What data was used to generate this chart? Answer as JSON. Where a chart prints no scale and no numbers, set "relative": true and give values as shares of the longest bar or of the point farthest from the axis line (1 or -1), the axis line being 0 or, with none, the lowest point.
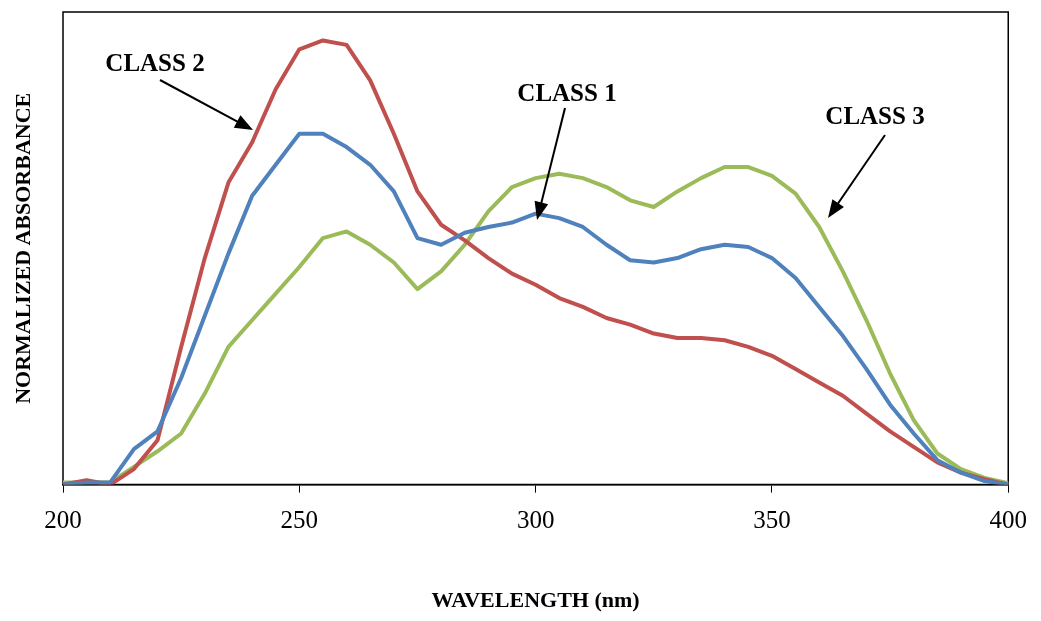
{
  "chart_data": {
    "type": "line",
    "relative": true,
    "xlabel": "WAVELENGTH (nm)",
    "ylabel": "NORMALIZED ABSORBANCE",
    "xlim": [
      200,
      400
    ],
    "xticks": [
      200,
      250,
      300,
      350,
      400
    ],
    "grid": false,
    "legend": false,
    "marker": "none",
    "line_style": "solid",
    "x": [
      200,
      205,
      210,
      215,
      220,
      225,
      230,
      235,
      240,
      245,
      250,
      255,
      260,
      265,
      270,
      275,
      280,
      285,
      290,
      295,
      300,
      305,
      310,
      315,
      320,
      325,
      330,
      335,
      340,
      345,
      350,
      355,
      360,
      365,
      370,
      375,
      380,
      385,
      390,
      395,
      400
    ],
    "series": [
      {
        "color": "#4f81bd",
        "values": [
          0,
          0.005,
          0.005,
          0.08,
          0.12,
          0.24,
          0.38,
          0.52,
          0.65,
          0.72,
          0.79,
          0.79,
          0.76,
          0.72,
          0.66,
          0.555,
          0.54,
          0.567,
          0.58,
          0.59,
          0.61,
          0.6,
          0.58,
          0.54,
          0.505,
          0.5,
          0.51,
          0.53,
          0.54,
          0.535,
          0.51,
          0.465,
          0.4,
          0.335,
          0.26,
          0.18,
          0.115,
          0.055,
          0.027,
          0.008,
          0
        ]
      },
      {
        "color": "#c0504d",
        "values": [
          0,
          0.01,
          0,
          0.035,
          0.1,
          0.31,
          0.51,
          0.68,
          0.77,
          0.89,
          0.98,
          1,
          0.99,
          0.91,
          0.79,
          0.66,
          0.585,
          0.55,
          0.51,
          0.475,
          0.45,
          0.42,
          0.4,
          0.375,
          0.36,
          0.34,
          0.33,
          0.33,
          0.325,
          0.31,
          0.29,
          0.26,
          0.23,
          0.2,
          0.16,
          0.12,
          0.085,
          0.05,
          0.027,
          0.012,
          0
        ]
      },
      {
        "color": "#9bbb59",
        "values": [
          0.005,
          0.005,
          0.005,
          0.04,
          0.075,
          0.115,
          0.205,
          0.31,
          0.37,
          0.43,
          0.49,
          0.555,
          0.57,
          0.54,
          0.5,
          0.44,
          0.48,
          0.54,
          0.615,
          0.67,
          0.69,
          0.7,
          0.69,
          0.67,
          0.64,
          0.625,
          0.66,
          0.69,
          0.715,
          0.715,
          0.695,
          0.655,
          0.58,
          0.48,
          0.37,
          0.25,
          0.145,
          0.07,
          0.035,
          0.015,
          0.003
        ]
      }
    ],
    "annotations": [
      "CLASS 2",
      "CLASS 1",
      "CLASS 3"
    ]
  }
}
